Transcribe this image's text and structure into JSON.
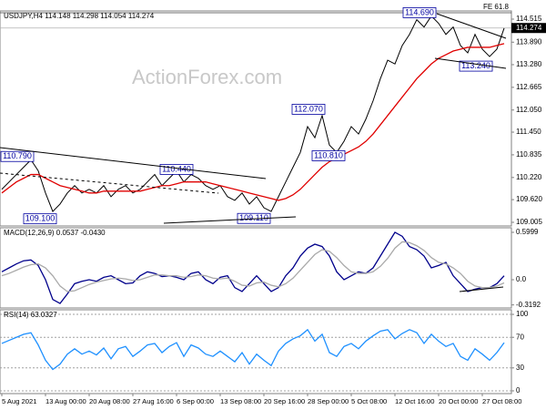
{
  "chart_data": [
    {
      "type": "line",
      "title": "USDJPY,H4 114.148 114.298 114.054 114.274",
      "annotation": "FE 61.8",
      "watermark": "ActionForex.com",
      "current_price": 114.274,
      "ylim": [
        108.906,
        114.737
      ],
      "yticks": [
        114.515,
        {
          "value": 113.89,
          "label": "113.890"
        },
        {
          "value": 113.28,
          "label": "113.280"
        },
        112.665,
        {
          "value": 112.05,
          "label": "112.050"
        },
        {
          "value": 111.45,
          "label": "111.450"
        },
        110.835,
        {
          "value": 110.22,
          "label": "110.220"
        },
        {
          "value": 109.62,
          "label": "109.620"
        },
        109.005
      ],
      "grid": false,
      "level_labels": [
        {
          "value": 114.69,
          "label": "114.690"
        },
        {
          "value": 113.24,
          "label": "113.240"
        },
        {
          "value": 112.07,
          "label": "112.070"
        },
        {
          "value": 110.81,
          "label": "110.810"
        },
        {
          "value": 110.79,
          "label": "110.790"
        },
        {
          "value": 110.44,
          "label": "110.440"
        },
        {
          "value": 109.1,
          "label": "109.100"
        },
        {
          "value": 109.11,
          "label": "109.110"
        }
      ],
      "series": [
        {
          "color": "#000000",
          "values": [
            109.9,
            110.1,
            110.3,
            110.5,
            110.7,
            110.4,
            109.8,
            109.3,
            109.5,
            109.8,
            110.0,
            109.8,
            109.9,
            109.8,
            110.0,
            109.7,
            109.9,
            110.0,
            109.8,
            109.9,
            110.1,
            110.3,
            110.0,
            110.2,
            110.4,
            110.1,
            110.3,
            110.2,
            110.0,
            109.9,
            110.0,
            109.7,
            109.6,
            109.8,
            109.5,
            109.7,
            109.4,
            109.3,
            109.7,
            110.1,
            110.5,
            110.9,
            111.6,
            111.3,
            111.9,
            111.1,
            110.9,
            111.2,
            111.6,
            111.4,
            111.8,
            112.3,
            112.9,
            113.4,
            113.3,
            113.8,
            114.1,
            114.5,
            114.3,
            114.6,
            114.4,
            114.1,
            114.3,
            113.8,
            113.6,
            114.1,
            113.7,
            113.5,
            113.7,
            114.27
          ]
        },
        {
          "color": "#e00000",
          "values": [
            109.8,
            109.95,
            110.1,
            110.2,
            110.3,
            110.3,
            110.2,
            110.1,
            110.0,
            109.95,
            109.9,
            109.85,
            109.8,
            109.8,
            109.85,
            109.85,
            109.85,
            109.85,
            109.85,
            109.85,
            109.9,
            109.95,
            110.0,
            110.0,
            110.05,
            110.1,
            110.1,
            110.1,
            110.1,
            110.05,
            110.0,
            109.95,
            109.9,
            109.85,
            109.8,
            109.75,
            109.7,
            109.65,
            109.6,
            109.65,
            109.75,
            109.9,
            110.1,
            110.3,
            110.5,
            110.65,
            110.75,
            110.85,
            110.95,
            111.05,
            111.2,
            111.4,
            111.65,
            111.9,
            112.15,
            112.4,
            112.65,
            112.9,
            113.1,
            113.3,
            113.45,
            113.55,
            113.65,
            113.7,
            113.75,
            113.75,
            113.75,
            113.75,
            113.8,
            113.85
          ]
        }
      ]
    },
    {
      "type": "line",
      "title": "MACD(12,26,9) 0.0537 -0.0430",
      "ylim": [
        -0.3576,
        0.6576
      ],
      "yticks": [
        0.5999,
        {
          "value": 0,
          "label": "0.0"
        },
        -0.3192
      ],
      "grid": false,
      "series": [
        {
          "color": "#00008b",
          "values": [
            0.1,
            0.15,
            0.2,
            0.24,
            0.25,
            0.18,
            0.0,
            -0.25,
            -0.3,
            -0.18,
            -0.05,
            -0.02,
            0.0,
            -0.02,
            0.03,
            0.05,
            0.0,
            -0.05,
            -0.04,
            0.05,
            0.1,
            0.08,
            0.04,
            0.05,
            0.03,
            0.0,
            0.08,
            0.1,
            0.0,
            -0.05,
            0.03,
            0.05,
            -0.1,
            -0.15,
            -0.05,
            0.05,
            -0.05,
            -0.15,
            -0.1,
            0.05,
            0.15,
            0.3,
            0.4,
            0.45,
            0.42,
            0.3,
            0.1,
            0.0,
            0.05,
            0.1,
            0.08,
            0.15,
            0.3,
            0.45,
            0.6,
            0.55,
            0.42,
            0.38,
            0.3,
            0.15,
            0.18,
            0.22,
            0.05,
            -0.05,
            -0.15,
            -0.12,
            -0.1,
            -0.1,
            -0.05,
            0.05
          ]
        },
        {
          "color": "#a9a9a9",
          "values": [
            0.05,
            0.08,
            0.12,
            0.16,
            0.19,
            0.2,
            0.15,
            0.05,
            -0.08,
            -0.15,
            -0.14,
            -0.1,
            -0.06,
            -0.03,
            -0.01,
            0.01,
            0.02,
            0.01,
            -0.01,
            0.0,
            0.03,
            0.06,
            0.06,
            0.05,
            0.05,
            0.03,
            0.04,
            0.06,
            0.05,
            0.02,
            0.01,
            0.02,
            -0.02,
            -0.07,
            -0.08,
            -0.04,
            -0.03,
            -0.07,
            -0.09,
            -0.05,
            0.02,
            0.12,
            0.22,
            0.32,
            0.38,
            0.36,
            0.28,
            0.18,
            0.1,
            0.08,
            0.08,
            0.1,
            0.17,
            0.27,
            0.4,
            0.48,
            0.47,
            0.43,
            0.37,
            0.28,
            0.22,
            0.2,
            0.15,
            0.08,
            -0.02,
            -0.08,
            -0.1,
            -0.1,
            -0.08,
            -0.04
          ]
        }
      ]
    },
    {
      "type": "line",
      "title": "RSI(14) 63.0327",
      "ylim": [
        -3.6,
        106
      ],
      "yticks": [
        100,
        70,
        30,
        0
      ],
      "grid": true,
      "categories": [
        "5 Aug 2021",
        null,
        null,
        null,
        null,
        null,
        "13 Aug 00:00",
        null,
        null,
        null,
        null,
        null,
        "20 Aug 08:00",
        null,
        null,
        null,
        null,
        null,
        "27 Aug 16:00",
        null,
        null,
        null,
        null,
        null,
        "6 Sep 00:00",
        null,
        null,
        null,
        null,
        null,
        "13 Sep 08:00",
        null,
        null,
        null,
        null,
        null,
        "20 Sep 16:00",
        null,
        null,
        null,
        null,
        null,
        "28 Sep 00:00",
        null,
        null,
        null,
        null,
        null,
        "5 Oct 08:00",
        null,
        null,
        null,
        null,
        null,
        "12 Oct 16:00",
        null,
        null,
        null,
        null,
        null,
        "20 Oct 00:00",
        null,
        null,
        null,
        null,
        null,
        "27 Oct 08:00",
        null,
        null,
        null
      ],
      "series": [
        {
          "color": "#1e90ff",
          "values": [
            62,
            66,
            70,
            74,
            76,
            60,
            40,
            28,
            35,
            48,
            55,
            48,
            52,
            47,
            56,
            42,
            55,
            58,
            45,
            52,
            60,
            62,
            50,
            58,
            63,
            45,
            60,
            56,
            48,
            45,
            52,
            45,
            38,
            50,
            35,
            48,
            40,
            33,
            52,
            62,
            68,
            72,
            80,
            65,
            74,
            50,
            45,
            58,
            62,
            55,
            65,
            72,
            78,
            80,
            68,
            75,
            80,
            76,
            62,
            74,
            65,
            58,
            62,
            45,
            40,
            55,
            48,
            40,
            50,
            63
          ]
        }
      ]
    }
  ]
}
